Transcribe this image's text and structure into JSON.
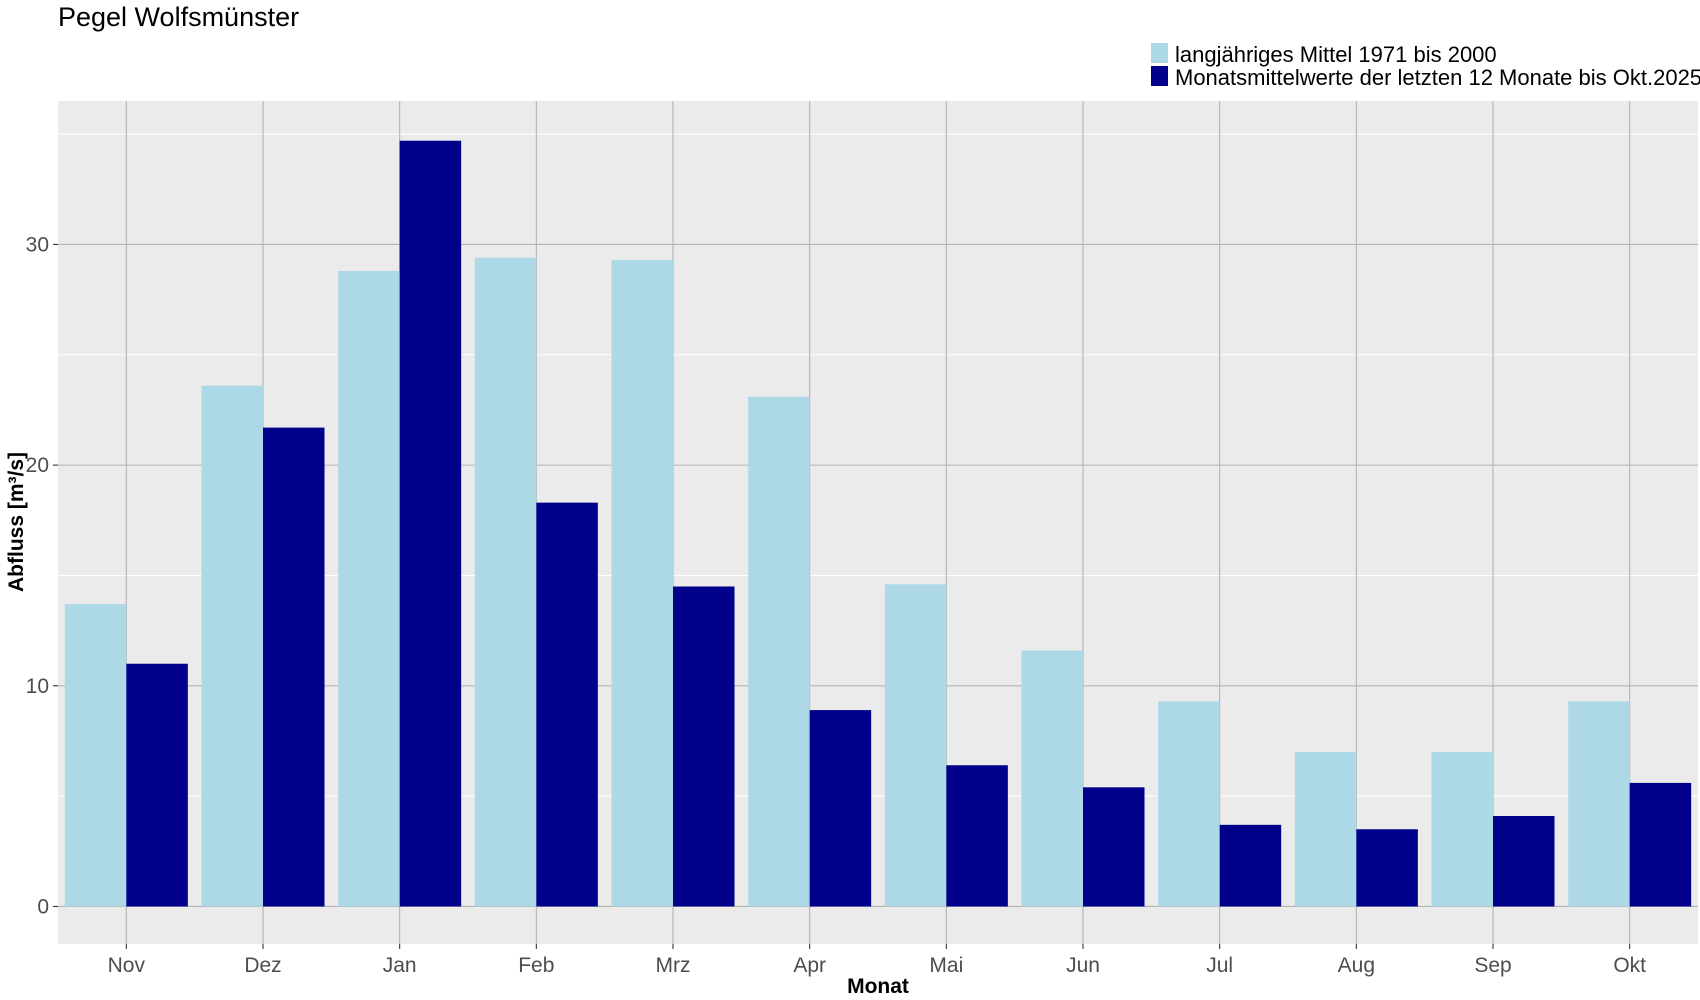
{
  "chart_data": {
    "type": "bar",
    "title": "Pegel Wolfsmünster",
    "xlabel": "Monat",
    "ylabel": "Abfluss [m³/s]",
    "categories": [
      "Nov",
      "Dez",
      "Jan",
      "Feb",
      "Mrz",
      "Apr",
      "Mai",
      "Jun",
      "Jul",
      "Aug",
      "Sep",
      "Okt"
    ],
    "series": [
      {
        "name": "langjähriges Mittel 1971 bis 2000",
        "color": "#add8e6",
        "values": [
          13.7,
          23.6,
          28.8,
          29.4,
          29.3,
          23.1,
          14.6,
          11.6,
          9.3,
          7.0,
          7.0,
          9.3
        ]
      },
      {
        "name": "Monatsmittelwerte der letzten 12 Monate bis Okt.2025",
        "color": "#00008b",
        "values": [
          11.0,
          21.7,
          34.7,
          18.3,
          14.5,
          8.9,
          6.4,
          5.4,
          3.7,
          3.5,
          4.1,
          5.6
        ]
      }
    ],
    "yticks": [
      0,
      10,
      20,
      30
    ],
    "ylim": [
      -1.7,
      36.5
    ],
    "grid": true,
    "legend_position": "top-right",
    "panel_background": "#ebebeb",
    "grid_color": "#b3b3b3"
  }
}
